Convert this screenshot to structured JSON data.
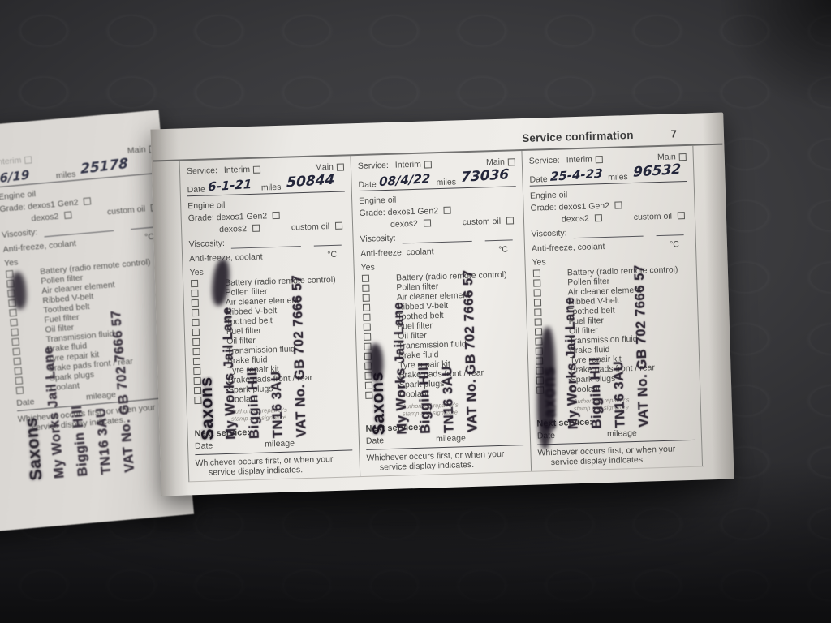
{
  "page": {
    "title": "Service confirmation",
    "number": "7"
  },
  "labels": {
    "service": "Service:",
    "interim": "Interim",
    "main": "Main",
    "date": "Date",
    "miles": "miles",
    "engine_oil": "Engine oil",
    "grade": "Grade:",
    "dexos1": "dexos1 Gen2",
    "dexos2": "dexos2",
    "custom_oil": "custom oil",
    "viscosity": "Viscosity:",
    "antifreeze": "Anti-freeze, coolant",
    "celsius": "°C",
    "yes": "Yes",
    "stamp_caption_1": "Authorized repairer's",
    "stamp_caption_2": "stamp and signature",
    "next_service": "Next service:",
    "mileage": "mileage",
    "footer_1": "Whichever occurs first, or when your",
    "footer_2": "service display indicates."
  },
  "checklist": [
    "Battery (radio remote control)",
    "Pollen filter",
    "Air cleaner element",
    "Ribbed V-belt",
    "Toothed belt",
    "Fuel filter",
    "Oil filter",
    "Transmission fluid",
    "Brake fluid",
    "Tyre repair kit",
    "Brake pads front / rear",
    "Spark plugs",
    "Coolant"
  ],
  "records": [
    {
      "date": "6-1-21",
      "miles": "50844"
    },
    {
      "date": "08/4/22",
      "miles": "73036"
    },
    {
      "date": "25-4-23",
      "miles": "96532"
    }
  ],
  "stamp": {
    "lines": [
      "Saxons",
      "My Works Jail Lane",
      "Biggin Hill",
      "TN16 3AU",
      "VAT No. GB 702 7666 57"
    ]
  },
  "left_page": {
    "date": "6/19",
    "miles": "25178"
  }
}
